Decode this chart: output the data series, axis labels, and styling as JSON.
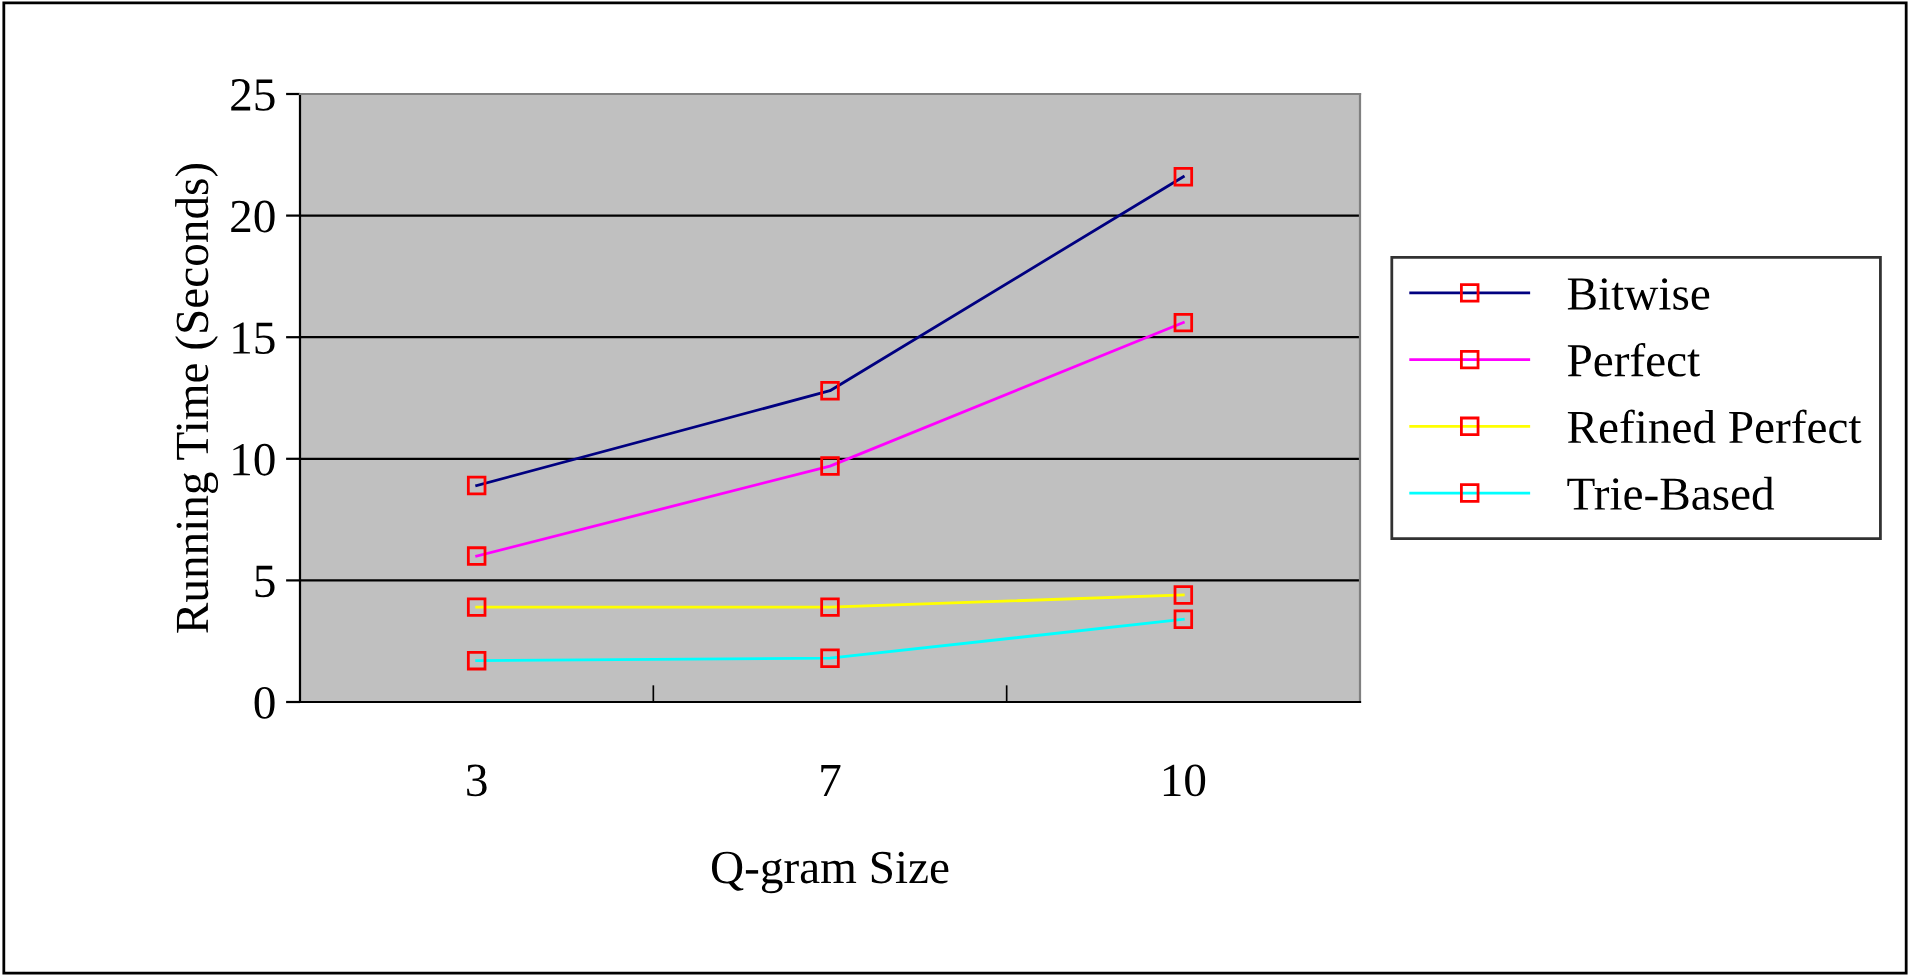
{
  "chart_data": {
    "type": "line",
    "xlabel": "Q-gram Size",
    "ylabel": "Running Time (Seconds)",
    "categories": [
      "3",
      "7",
      "10"
    ],
    "series": [
      {
        "name": "Bitwise",
        "color": "#000080",
        "values": [
          8.9,
          12.8,
          21.6
        ]
      },
      {
        "name": "Perfect",
        "color": "#ff00ff",
        "values": [
          6.0,
          9.7,
          15.6
        ]
      },
      {
        "name": "Refined Perfect",
        "color": "#ffff00",
        "values": [
          3.9,
          3.9,
          4.4
        ]
      },
      {
        "name": "Trie-Based",
        "color": "#00ffff",
        "values": [
          1.7,
          1.8,
          3.4
        ]
      }
    ],
    "ylim": [
      0,
      25
    ],
    "yticks": [
      0,
      5,
      10,
      15,
      20,
      25
    ],
    "grid": "y",
    "legend": "right",
    "marker": "square",
    "line_style": "solid"
  }
}
